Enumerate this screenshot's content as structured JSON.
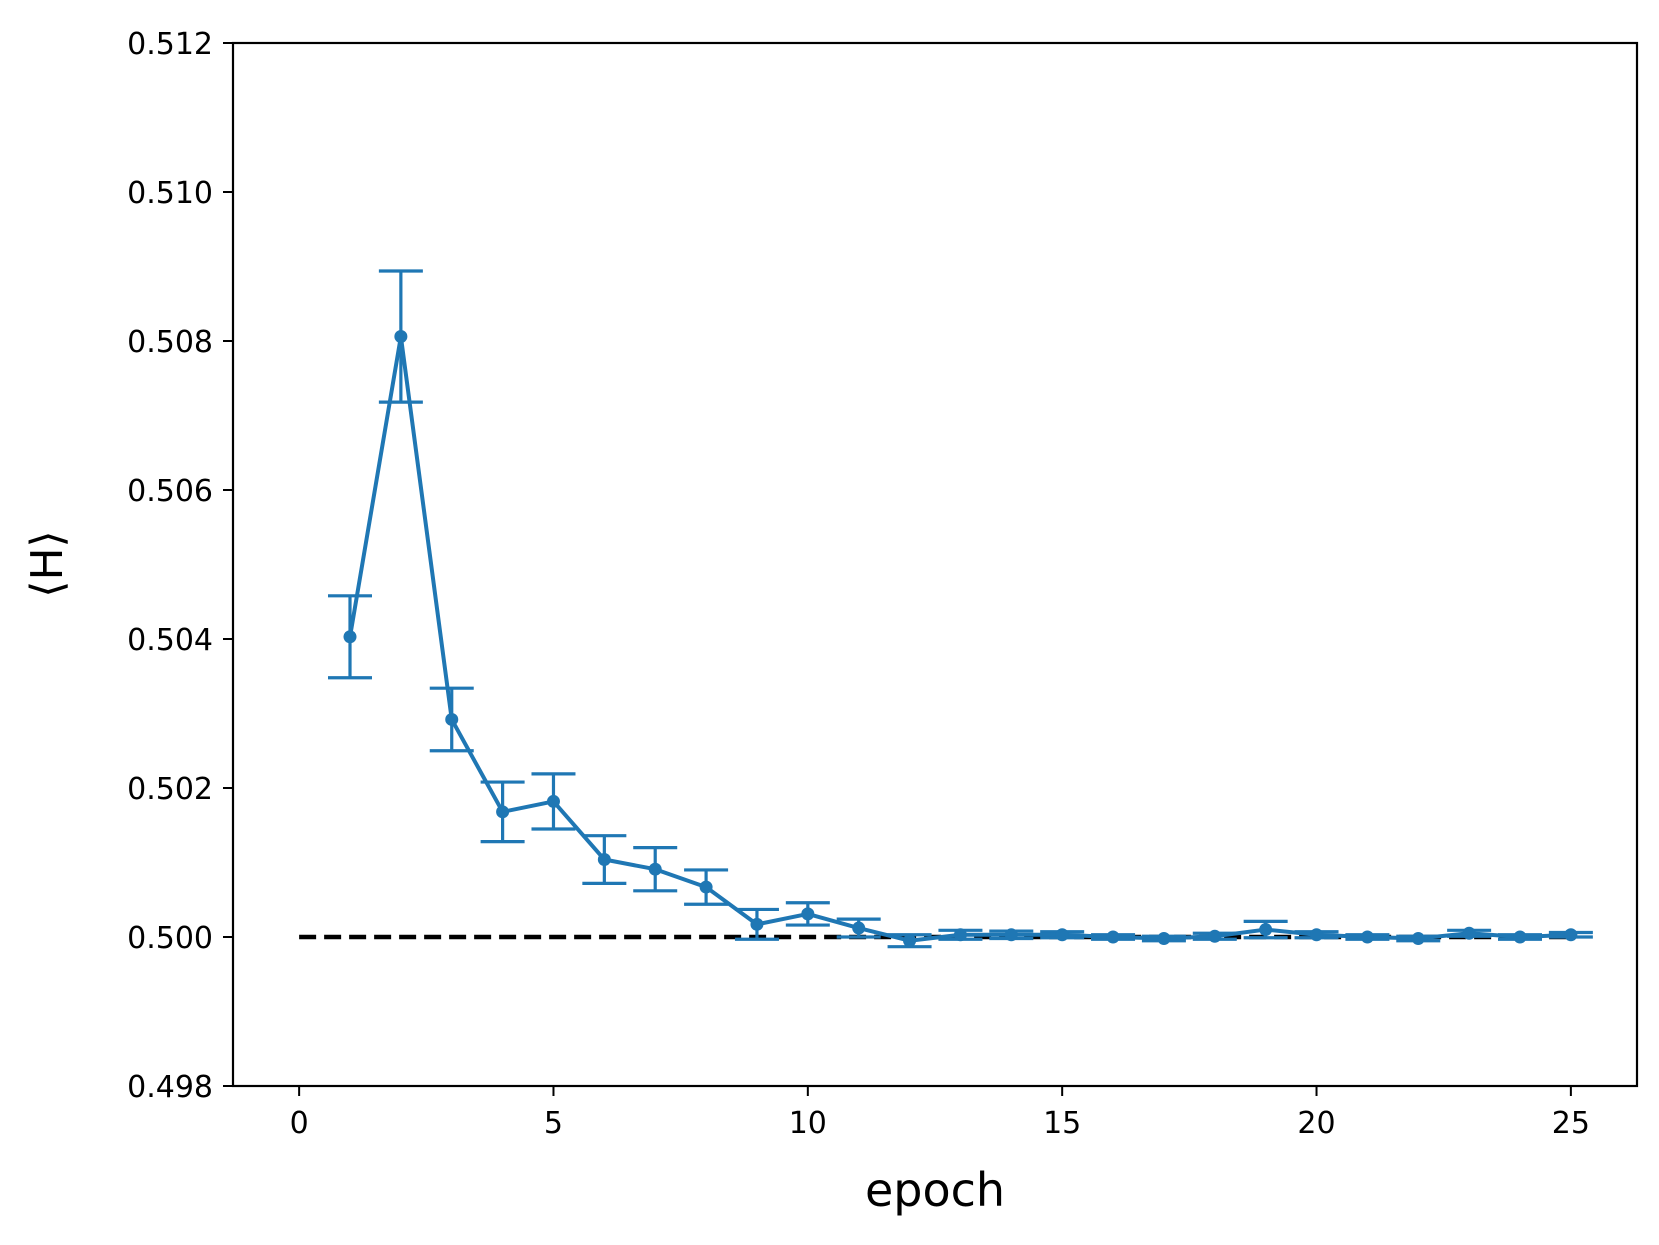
{
  "chart_data": {
    "type": "line",
    "xlabel": "epoch",
    "ylabel": "⟨H⟩",
    "xlim": [
      -1.3,
      26.3
    ],
    "ylim": [
      0.498,
      0.512
    ],
    "xticks": [
      0,
      5,
      10,
      15,
      20,
      25
    ],
    "xtick_labels": [
      "0",
      "5",
      "10",
      "15",
      "20",
      "25"
    ],
    "yticks": [
      0.498,
      0.5,
      0.502,
      0.504,
      0.506,
      0.508,
      0.51,
      0.512
    ],
    "ytick_labels": [
      "0.498",
      "0.500",
      "0.502",
      "0.504",
      "0.506",
      "0.508",
      "0.510",
      "0.512"
    ],
    "grid": false,
    "series": [
      {
        "color": "#1f77b4",
        "marker": "circle",
        "x": [
          1,
          2,
          3,
          4,
          5,
          6,
          7,
          8,
          9,
          10,
          11,
          12,
          13,
          14,
          15,
          16,
          17,
          18,
          19,
          20,
          21,
          22,
          23,
          24,
          25
        ],
        "y": [
          0.50403,
          0.50806,
          0.50292,
          0.50168,
          0.50182,
          0.50104,
          0.50091,
          0.50067,
          0.50017,
          0.50031,
          0.50012,
          0.49995,
          0.50003,
          0.50003,
          0.50003,
          0.5,
          0.49998,
          0.50001,
          0.5001,
          0.50003,
          0.5,
          0.49998,
          0.50005,
          0.5,
          0.50003
        ],
        "yerr": [
          0.00055,
          0.00088,
          0.00042,
          0.0004,
          0.00037,
          0.00032,
          0.00029,
          0.00023,
          0.0002,
          0.00015,
          0.00012,
          8e-05,
          6e-05,
          5e-05,
          4e-05,
          3e-05,
          3e-05,
          4e-05,
          0.00011,
          4e-05,
          3e-05,
          3e-05,
          4e-05,
          3e-05,
          3e-05
        ]
      }
    ],
    "reference_line": {
      "y": 0.5,
      "x": [
        0,
        25
      ],
      "color": "#000000",
      "style": "dashed"
    }
  }
}
